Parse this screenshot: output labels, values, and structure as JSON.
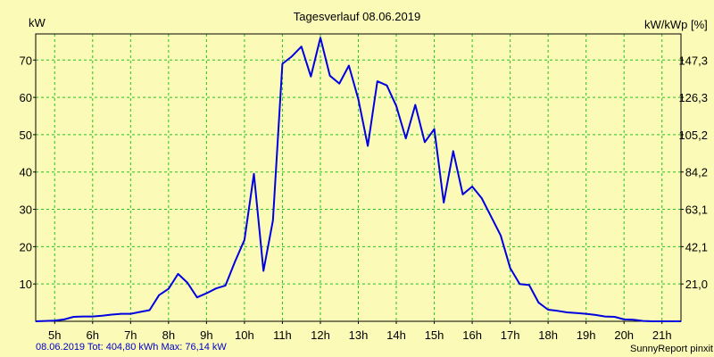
{
  "chart_data": {
    "type": "line",
    "title": "Tagesverlauf 08.06.2019",
    "ylabel_left": "kW",
    "ylabel_right": "kW/kWp [%]",
    "x_ticks": [
      "5h",
      "6h",
      "7h",
      "8h",
      "9h",
      "10h",
      "11h",
      "12h",
      "13h",
      "14h",
      "15h",
      "16h",
      "17h",
      "18h",
      "19h",
      "20h",
      "21h"
    ],
    "xlim": [
      4.5,
      21.5
    ],
    "ylim_left": [
      0,
      77
    ],
    "left_ticks": [
      10,
      20,
      30,
      40,
      50,
      60,
      70
    ],
    "right_ticks": [
      "21,0",
      "42,1",
      "63,1",
      "84,2",
      "105,2",
      "126,3",
      "147,3"
    ],
    "grid": true,
    "line_color": "#0000e0",
    "series": [
      {
        "x": [
          4.5,
          5,
          5.25,
          5.5,
          5.75,
          6,
          6.25,
          6.5,
          6.75,
          7,
          7.25,
          7.5,
          7.75,
          8,
          8.25,
          8.5,
          8.75,
          9,
          9.25,
          9.5,
          9.75,
          10,
          10.25,
          10.5,
          10.75,
          11,
          11.25,
          11.5,
          11.75,
          12,
          12.25,
          12.5,
          12.75,
          13,
          13.25,
          13.5,
          13.75,
          14,
          14.25,
          14.5,
          14.75,
          15,
          15.25,
          15.5,
          15.75,
          16,
          16.25,
          16.5,
          16.75,
          17,
          17.25,
          17.5,
          17.75,
          18,
          18.25,
          18.5,
          18.75,
          19,
          19.25,
          19.5,
          19.75,
          20,
          20.25,
          20.5,
          20.75,
          21,
          21.5
        ],
        "values": [
          0,
          0.2,
          0.5,
          1.2,
          1.3,
          1.3,
          1.5,
          1.8,
          2,
          2,
          2.5,
          3,
          7,
          8.7,
          12.7,
          10.3,
          6.4,
          7.5,
          8.8,
          9.6,
          16,
          21.8,
          39.5,
          13.5,
          27,
          69,
          71,
          73.6,
          65.6,
          76,
          65.8,
          63.7,
          68.5,
          59.5,
          47,
          64.3,
          63.2,
          57.7,
          49,
          58,
          48,
          51.5,
          31.8,
          45.6,
          34,
          36.1,
          33,
          28,
          23,
          14.3,
          10,
          9.7,
          5,
          3.1,
          2.8,
          2.4,
          2.2,
          2,
          1.7,
          1.3,
          1.2,
          0.5,
          0.4,
          0.1,
          0,
          0,
          0
        ]
      }
    ]
  },
  "footer": {
    "summary": "08.06.2019 Tot: 404,80 kWh Max: 76,14 kW",
    "brand": "SunnyReport pinxit"
  }
}
